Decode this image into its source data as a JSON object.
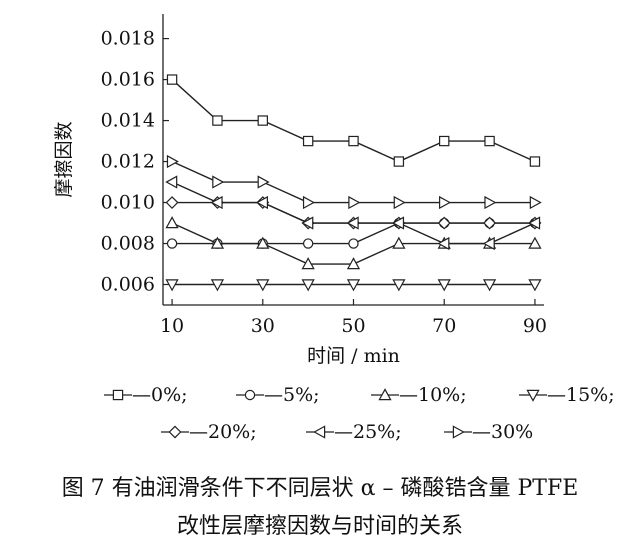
{
  "figure": {
    "caption_line1": "图 7   有油润滑条件下不同层状 α – 磷酸锆含量 PTFE",
    "caption_line2": "改性层摩擦因数与时间的关系"
  },
  "chart_data": {
    "type": "line",
    "xlabel": "时间 / min",
    "ylabel": "摩擦因数",
    "x": [
      10,
      20,
      30,
      40,
      50,
      60,
      70,
      80,
      90
    ],
    "xticks": [
      10,
      30,
      50,
      70,
      90
    ],
    "yticks": [
      "0.006",
      "0.008",
      "0.010",
      "0.012",
      "0.014",
      "0.016",
      "0.018"
    ],
    "xlim": [
      8,
      92
    ],
    "ylim": [
      0.005,
      0.0192
    ],
    "grid": false,
    "legend_position": "below",
    "legend_rows": [
      [
        0,
        1,
        2,
        3
      ],
      [
        4,
        5,
        6
      ]
    ],
    "series": [
      {
        "name": "—0%;",
        "marker": "square",
        "values": [
          0.016,
          0.014,
          0.014,
          0.013,
          0.013,
          0.012,
          0.013,
          0.013,
          0.012
        ]
      },
      {
        "name": "—5%;",
        "marker": "circle",
        "values": [
          0.008,
          0.008,
          0.008,
          0.008,
          0.008,
          0.009,
          0.009,
          0.009,
          0.009
        ]
      },
      {
        "name": "—10%;",
        "marker": "triangle-up",
        "values": [
          0.009,
          0.008,
          0.008,
          0.007,
          0.007,
          0.008,
          0.008,
          0.008,
          0.008
        ]
      },
      {
        "name": "—15%;",
        "marker": "triangle-down",
        "values": [
          0.006,
          0.006,
          0.006,
          0.006,
          0.006,
          0.006,
          0.006,
          0.006,
          0.006
        ]
      },
      {
        "name": "—20%;",
        "marker": "diamond",
        "values": [
          0.01,
          0.01,
          0.01,
          0.009,
          0.009,
          0.009,
          0.009,
          0.009,
          0.009
        ]
      },
      {
        "name": "—25%;",
        "marker": "triangle-left",
        "values": [
          0.011,
          0.01,
          0.01,
          0.009,
          0.009,
          0.009,
          0.008,
          0.008,
          0.009
        ]
      },
      {
        "name": "—30%",
        "marker": "triangle-right",
        "values": [
          0.012,
          0.011,
          0.011,
          0.01,
          0.01,
          0.01,
          0.01,
          0.01,
          0.01
        ]
      }
    ]
  }
}
